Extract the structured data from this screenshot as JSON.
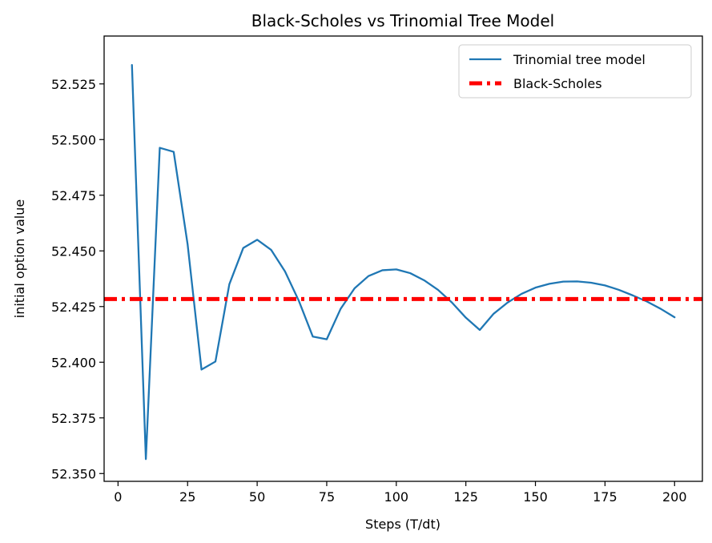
{
  "chart_data": {
    "type": "line",
    "title": "Black-Scholes vs Trinomial Tree Model",
    "xlabel": "Steps (T/dt)",
    "ylabel": "initial option value",
    "xlim": [
      -5,
      210
    ],
    "ylim": [
      52.3465,
      52.5465
    ],
    "xticks": [
      0,
      25,
      50,
      75,
      100,
      125,
      150,
      175,
      200
    ],
    "yticks": [
      52.35,
      52.375,
      52.4,
      52.425,
      52.45,
      52.475,
      52.5,
      52.525
    ],
    "xtick_labels": [
      "0",
      "25",
      "50",
      "75",
      "100",
      "125",
      "150",
      "175",
      "200"
    ],
    "ytick_labels": [
      "52.350",
      "52.375",
      "52.400",
      "52.425",
      "52.450",
      "52.475",
      "52.500",
      "52.525"
    ],
    "grid": false,
    "legend_position": "top-right",
    "series": [
      {
        "name": "Trinomial tree model",
        "color": "#1f77b4",
        "style": "solid",
        "x": [
          5,
          10,
          15,
          20,
          25,
          30,
          35,
          40,
          45,
          50,
          55,
          60,
          65,
          70,
          75,
          80,
          85,
          90,
          95,
          100,
          105,
          110,
          115,
          120,
          125,
          130,
          135,
          140,
          145,
          150,
          155,
          160,
          165,
          170,
          175,
          180,
          185,
          190,
          195,
          200
        ],
        "y": [
          52.5335,
          52.3565,
          52.4963,
          52.4945,
          52.453,
          52.3967,
          52.4003,
          52.435,
          52.4513,
          52.455,
          52.4505,
          52.4408,
          52.4275,
          52.4115,
          52.4103,
          52.424,
          52.4332,
          52.4387,
          52.4413,
          52.4417,
          52.44,
          52.4368,
          52.4325,
          52.4268,
          52.42,
          52.4145,
          52.4218,
          52.4268,
          52.4307,
          52.4335,
          52.4352,
          52.4362,
          52.4363,
          52.4357,
          52.4345,
          52.4325,
          52.43,
          52.4273,
          52.424,
          52.4202
        ]
      },
      {
        "name": "Black-Scholes",
        "color": "#ff0000",
        "style": "dash-dot",
        "y_constant": 52.4284
      }
    ]
  }
}
